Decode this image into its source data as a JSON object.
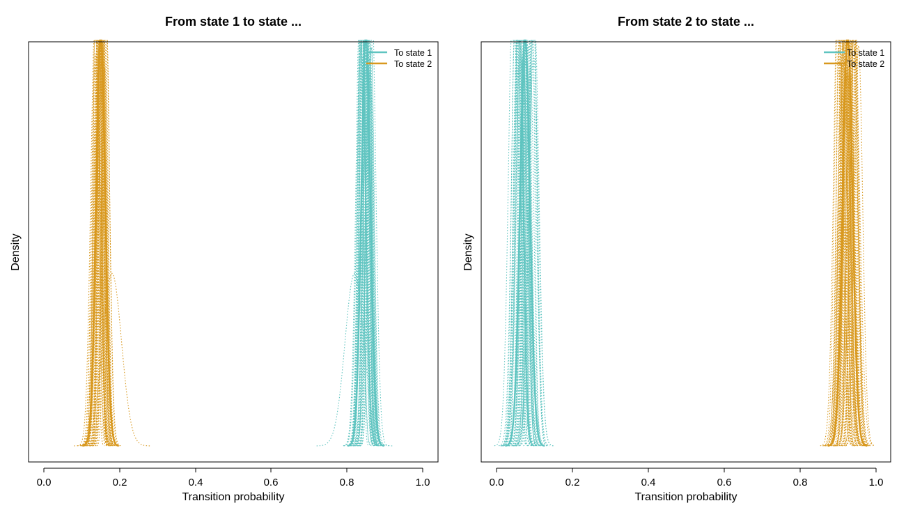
{
  "colors": {
    "to_state_1": "#5fc4c0",
    "to_state_2": "#d8981e",
    "frame": "#000000"
  },
  "chart_data": [
    {
      "type": "line",
      "title": "From state 1 to state ...",
      "xlabel": "Transition probability",
      "ylabel": "Density",
      "xlim": [
        0.0,
        1.0
      ],
      "xticks": [
        "0.0",
        "0.2",
        "0.4",
        "0.6",
        "0.8",
        "1.0"
      ],
      "y_ticks_shown": false,
      "grid": false,
      "legend_position": "top-right",
      "legend": [
        "To state 1",
        "To state 2"
      ],
      "series": [
        {
          "name": "To state 1",
          "style": "solid",
          "color_key": "to_state_1",
          "mode": 0.85,
          "spread": 0.012,
          "peak": 1.0
        },
        {
          "name": "To state 2",
          "style": "solid",
          "color_key": "to_state_2",
          "mode": 0.15,
          "spread": 0.012,
          "peak": 1.0
        }
      ],
      "sample_curves": [
        {
          "color_key": "to_state_1",
          "style": "dotted",
          "count": 40,
          "mode_range": [
            0.835,
            0.865
          ],
          "spread_range": [
            0.005,
            0.012
          ]
        },
        {
          "color_key": "to_state_1",
          "style": "dotted",
          "count": 1,
          "mode_range": [
            0.82,
            0.82
          ],
          "spread_range": [
            0.025,
            0.025
          ],
          "peak": 0.42
        },
        {
          "color_key": "to_state_2",
          "style": "dotted",
          "count": 40,
          "mode_range": [
            0.135,
            0.165
          ],
          "spread_range": [
            0.005,
            0.012
          ]
        },
        {
          "color_key": "to_state_2",
          "style": "dotted",
          "count": 1,
          "mode_range": [
            0.18,
            0.18
          ],
          "spread_range": [
            0.025,
            0.025
          ],
          "peak": 0.42
        }
      ]
    },
    {
      "type": "line",
      "title": "From state 2 to state ...",
      "xlabel": "Transition probability",
      "ylabel": "Density",
      "xlim": [
        0.0,
        1.0
      ],
      "xticks": [
        "0.0",
        "0.2",
        "0.4",
        "0.6",
        "0.8",
        "1.0"
      ],
      "y_ticks_shown": false,
      "grid": false,
      "legend_position": "top-right",
      "legend": [
        "To state 1",
        "To state 2"
      ],
      "series": [
        {
          "name": "To state 1",
          "style": "solid",
          "color_key": "to_state_1",
          "mode": 0.075,
          "spread": 0.013,
          "peak": 1.0
        },
        {
          "name": "To state 2",
          "style": "solid",
          "color_key": "to_state_2",
          "mode": 0.925,
          "spread": 0.013,
          "peak": 1.0
        }
      ],
      "sample_curves": [
        {
          "color_key": "to_state_1",
          "style": "dotted",
          "count": 40,
          "mode_range": [
            0.045,
            0.1
          ],
          "spread_range": [
            0.006,
            0.014
          ]
        },
        {
          "color_key": "to_state_2",
          "style": "dotted",
          "count": 40,
          "mode_range": [
            0.9,
            0.955
          ],
          "spread_range": [
            0.006,
            0.014
          ]
        }
      ]
    }
  ]
}
